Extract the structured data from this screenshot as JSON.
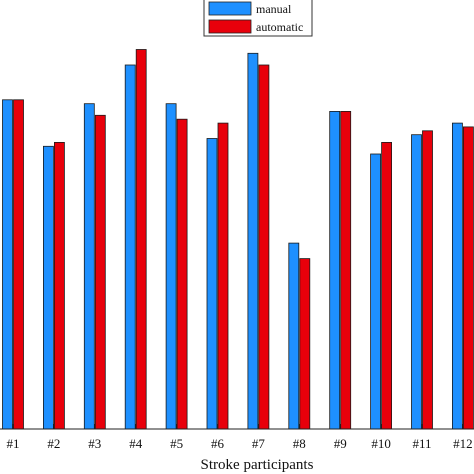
{
  "chart_data": {
    "type": "bar",
    "categories": [
      "#1",
      "#2",
      "#3",
      "#4",
      "#5",
      "#6",
      "#7",
      "#8",
      "#9",
      "#10",
      "#11",
      "#12"
    ],
    "series": [
      {
        "name": "manual",
        "color": "#1e90ff",
        "values": [
          0.85,
          0.73,
          0.84,
          0.94,
          0.84,
          0.75,
          0.97,
          0.48,
          0.82,
          0.71,
          0.76,
          0.79
        ]
      },
      {
        "name": "automatic",
        "color": "#e8000b",
        "values": [
          0.85,
          0.74,
          0.81,
          0.98,
          0.8,
          0.79,
          0.94,
          0.44,
          0.82,
          0.74,
          0.77,
          0.78
        ]
      }
    ],
    "xlabel": "Stroke participants",
    "ylabel": "",
    "ylim": [
      0,
      1.1
    ],
    "grid": false,
    "legend_position": "top-center"
  }
}
